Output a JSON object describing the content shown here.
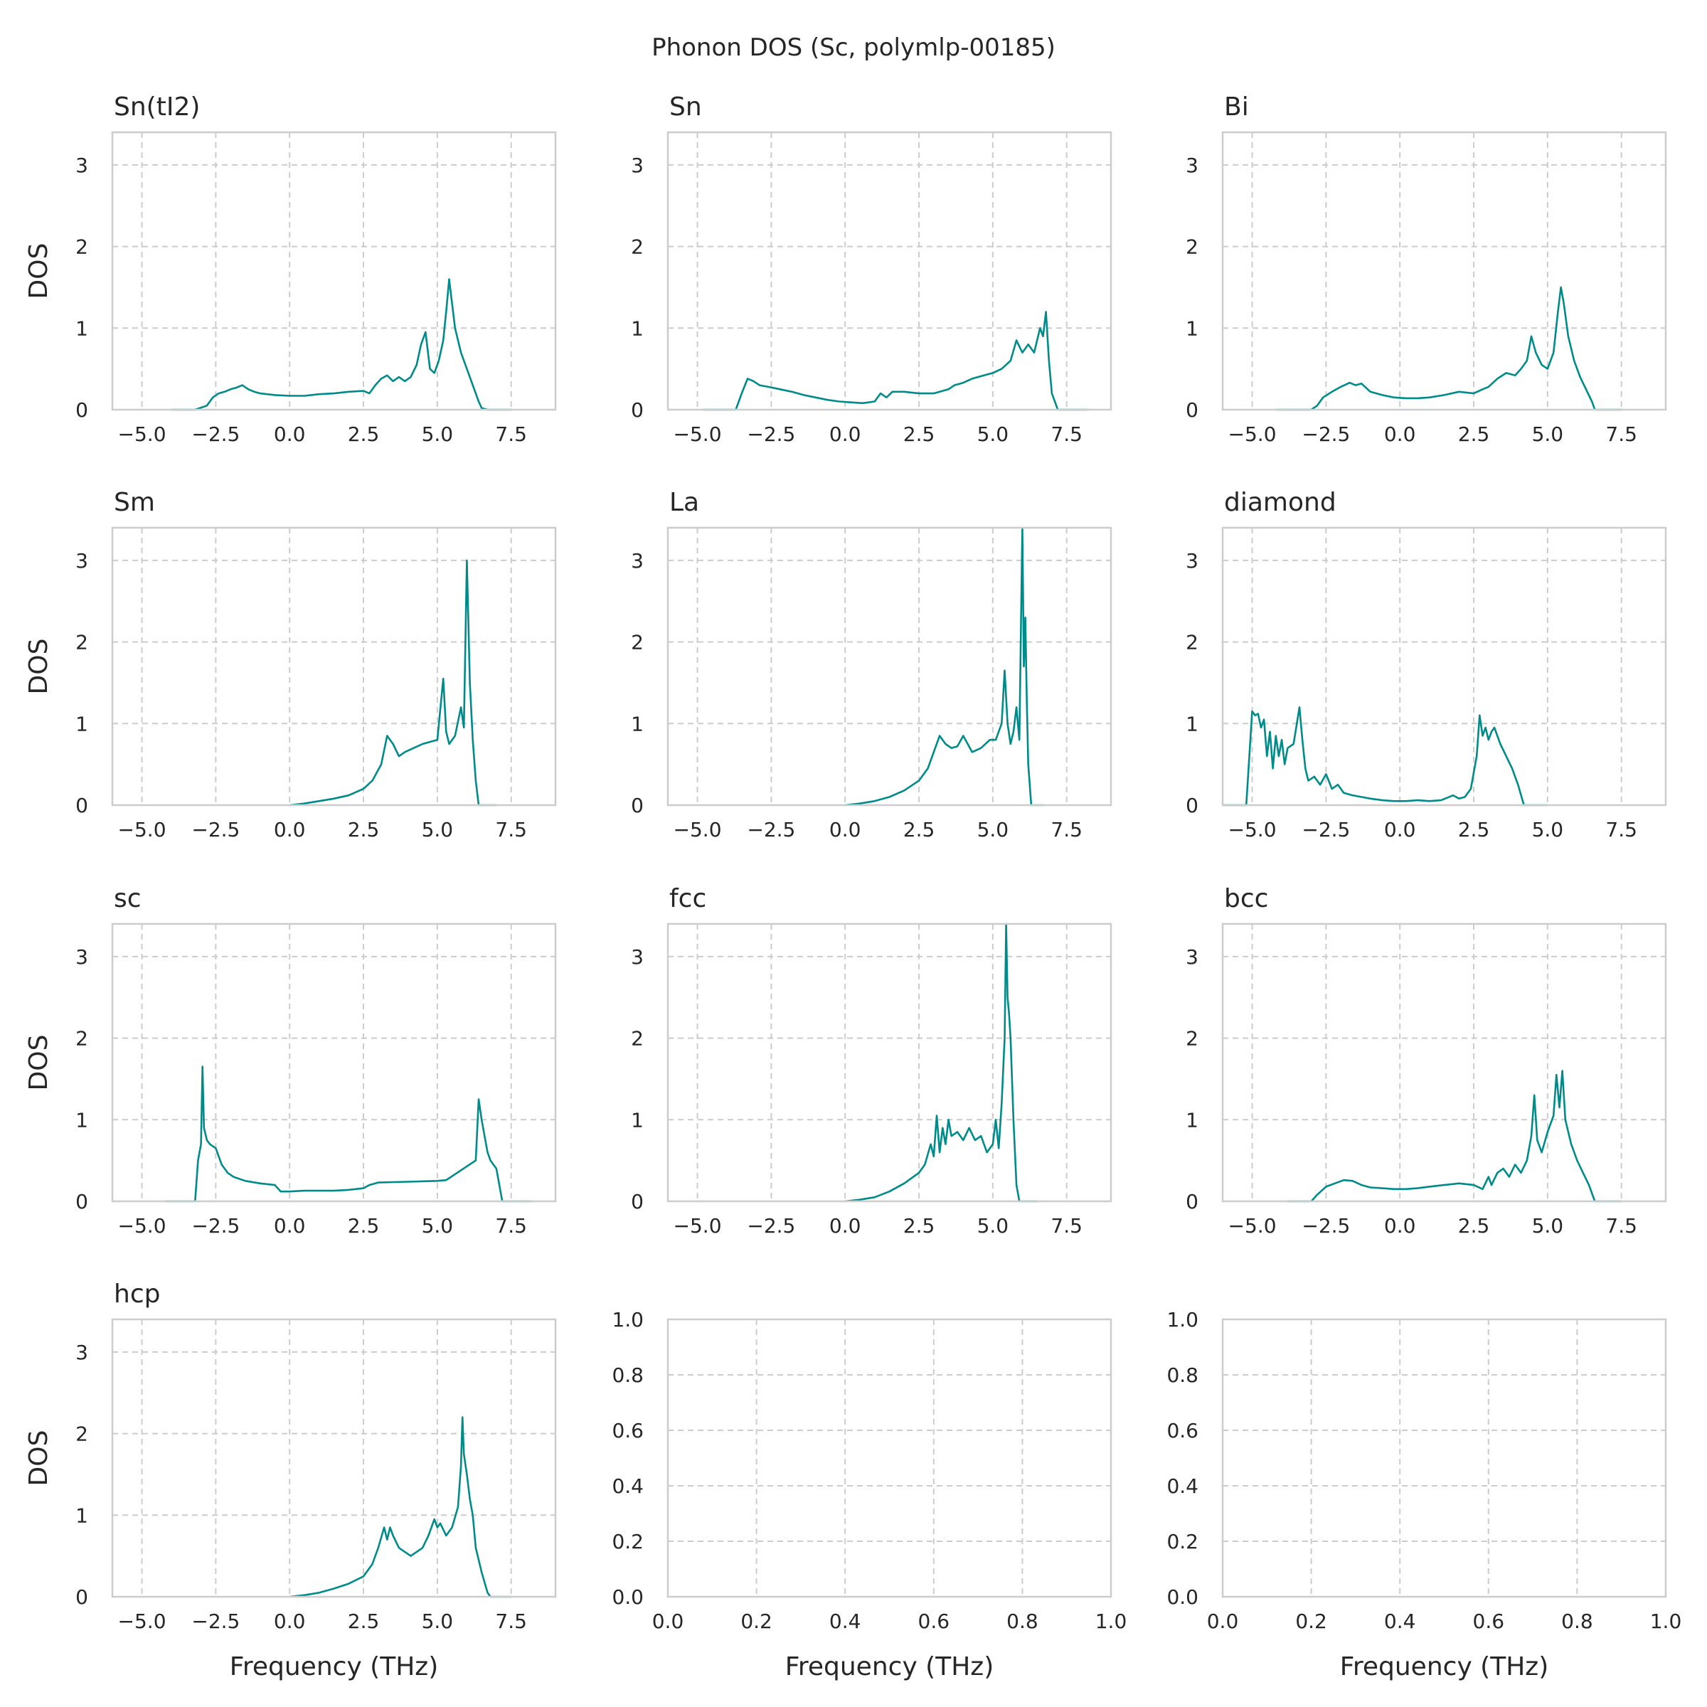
{
  "figure": {
    "title": "Phonon DOS (Sc, polymlp-00185)",
    "xlabel": "Frequency (THz)",
    "ylabel": "DOS",
    "line_color": "#008b8b",
    "grid_color": "#cccccc"
  },
  "chart_data": [
    {
      "type": "line",
      "title": "Sn(tI2)",
      "xlim": [
        -6,
        9
      ],
      "ylim": [
        0,
        3.4
      ],
      "xticks": [
        -5.0,
        -2.5,
        0.0,
        2.5,
        5.0,
        7.5
      ],
      "yticks": [
        0,
        1,
        2,
        3
      ],
      "grid": true,
      "x": [
        -4.0,
        -3.2,
        -2.8,
        -2.6,
        -2.4,
        -2.2,
        -2.0,
        -1.8,
        -1.6,
        -1.4,
        -1.2,
        -1.0,
        -0.5,
        0.0,
        0.5,
        1.0,
        1.5,
        2.0,
        2.5,
        2.7,
        2.9,
        3.1,
        3.3,
        3.5,
        3.7,
        3.9,
        4.1,
        4.3,
        4.45,
        4.6,
        4.75,
        4.9,
        5.05,
        5.2,
        5.3,
        5.4,
        5.5,
        5.6,
        5.8,
        6.0,
        6.2,
        6.4,
        6.5,
        6.7,
        7.5
      ],
      "y": [
        0,
        0,
        0.05,
        0.15,
        0.2,
        0.22,
        0.25,
        0.27,
        0.3,
        0.25,
        0.22,
        0.2,
        0.18,
        0.17,
        0.17,
        0.19,
        0.2,
        0.22,
        0.23,
        0.2,
        0.3,
        0.38,
        0.42,
        0.35,
        0.4,
        0.35,
        0.4,
        0.55,
        0.8,
        0.95,
        0.5,
        0.45,
        0.6,
        0.85,
        1.2,
        1.6,
        1.3,
        1.0,
        0.7,
        0.5,
        0.3,
        0.1,
        0.02,
        0,
        0
      ]
    },
    {
      "type": "line",
      "title": "Sn",
      "xlim": [
        -6,
        9
      ],
      "ylim": [
        0,
        3.4
      ],
      "xticks": [
        -5.0,
        -2.5,
        0.0,
        2.5,
        5.0,
        7.5
      ],
      "yticks": [
        0,
        1,
        2,
        3
      ],
      "grid": true,
      "x": [
        -4.8,
        -3.7,
        -3.5,
        -3.3,
        -3.1,
        -2.9,
        -2.6,
        -2.2,
        -1.8,
        -1.4,
        -1.0,
        -0.6,
        -0.2,
        0.2,
        0.6,
        1.0,
        1.2,
        1.4,
        1.6,
        2.0,
        2.5,
        3.0,
        3.5,
        3.7,
        4.0,
        4.3,
        4.7,
        5.0,
        5.3,
        5.6,
        5.8,
        6.0,
        6.2,
        6.4,
        6.6,
        6.7,
        6.8,
        6.9,
        7.0,
        7.2,
        8.2
      ],
      "y": [
        0,
        0,
        0.2,
        0.38,
        0.35,
        0.3,
        0.28,
        0.25,
        0.22,
        0.18,
        0.15,
        0.12,
        0.1,
        0.09,
        0.08,
        0.1,
        0.2,
        0.15,
        0.22,
        0.22,
        0.2,
        0.2,
        0.25,
        0.3,
        0.33,
        0.38,
        0.42,
        0.45,
        0.5,
        0.6,
        0.85,
        0.7,
        0.8,
        0.7,
        1.0,
        0.9,
        1.2,
        0.6,
        0.2,
        0,
        0
      ]
    },
    {
      "type": "line",
      "title": "Bi",
      "xlim": [
        -6,
        9
      ],
      "ylim": [
        0,
        3.4
      ],
      "xticks": [
        -5.0,
        -2.5,
        0.0,
        2.5,
        5.0,
        7.5
      ],
      "yticks": [
        0,
        1,
        2,
        3
      ],
      "grid": true,
      "x": [
        -4.2,
        -3.0,
        -2.8,
        -2.6,
        -2.3,
        -2.0,
        -1.7,
        -1.5,
        -1.3,
        -1.0,
        -0.6,
        -0.2,
        0.2,
        0.6,
        1.0,
        1.5,
        2.0,
        2.5,
        2.8,
        3.0,
        3.3,
        3.6,
        3.9,
        4.1,
        4.3,
        4.45,
        4.6,
        4.8,
        5.0,
        5.2,
        5.35,
        5.45,
        5.55,
        5.7,
        5.9,
        6.1,
        6.3,
        6.5,
        6.6,
        7.5
      ],
      "y": [
        0,
        0,
        0.05,
        0.15,
        0.22,
        0.28,
        0.33,
        0.3,
        0.32,
        0.22,
        0.18,
        0.15,
        0.14,
        0.14,
        0.15,
        0.18,
        0.22,
        0.2,
        0.25,
        0.28,
        0.38,
        0.45,
        0.42,
        0.5,
        0.6,
        0.9,
        0.7,
        0.55,
        0.5,
        0.7,
        1.2,
        1.5,
        1.3,
        0.9,
        0.6,
        0.4,
        0.25,
        0.1,
        0,
        0
      ]
    },
    {
      "type": "line",
      "title": "Sm",
      "xlim": [
        -6,
        9
      ],
      "ylim": [
        0,
        3.4
      ],
      "xticks": [
        -5.0,
        -2.5,
        0.0,
        2.5,
        5.0,
        7.5
      ],
      "yticks": [
        0,
        1,
        2,
        3
      ],
      "grid": true,
      "x": [
        0.0,
        0.5,
        1.0,
        1.5,
        2.0,
        2.5,
        2.8,
        3.1,
        3.3,
        3.5,
        3.7,
        3.9,
        4.2,
        4.5,
        4.8,
        5.0,
        5.2,
        5.3,
        5.4,
        5.6,
        5.8,
        5.9,
        6.0,
        6.1,
        6.2,
        6.3,
        6.4,
        7.0
      ],
      "y": [
        0,
        0.02,
        0.05,
        0.08,
        0.12,
        0.2,
        0.3,
        0.5,
        0.85,
        0.75,
        0.6,
        0.65,
        0.7,
        0.75,
        0.78,
        0.8,
        1.55,
        0.9,
        0.75,
        0.85,
        1.2,
        0.95,
        3.0,
        1.5,
        0.8,
        0.3,
        0,
        0
      ]
    },
    {
      "type": "line",
      "title": "La",
      "xlim": [
        -6,
        9
      ],
      "ylim": [
        0,
        3.4
      ],
      "xticks": [
        -5.0,
        -2.5,
        0.0,
        2.5,
        5.0,
        7.5
      ],
      "yticks": [
        0,
        1,
        2,
        3
      ],
      "grid": true,
      "x": [
        0.0,
        0.5,
        1.0,
        1.5,
        2.0,
        2.5,
        2.8,
        3.0,
        3.2,
        3.4,
        3.6,
        3.8,
        4.0,
        4.3,
        4.6,
        4.9,
        5.1,
        5.3,
        5.4,
        5.5,
        5.6,
        5.7,
        5.8,
        5.9,
        6.0,
        6.05,
        6.1,
        6.15,
        6.2,
        6.3,
        6.7
      ],
      "y": [
        0,
        0.02,
        0.05,
        0.1,
        0.18,
        0.3,
        0.45,
        0.65,
        0.85,
        0.75,
        0.7,
        0.72,
        0.85,
        0.65,
        0.7,
        0.8,
        0.8,
        1.0,
        1.65,
        1.0,
        0.75,
        0.9,
        1.2,
        0.8,
        3.4,
        1.7,
        2.3,
        1.3,
        0.5,
        0,
        0
      ]
    },
    {
      "type": "line",
      "title": "diamond",
      "xlim": [
        -6,
        9
      ],
      "ylim": [
        0,
        3.4
      ],
      "xticks": [
        -5.0,
        -2.5,
        0.0,
        2.5,
        5.0,
        7.5
      ],
      "yticks": [
        0,
        1,
        2,
        3
      ],
      "grid": true,
      "x": [
        -6.0,
        -5.2,
        -5.0,
        -4.9,
        -4.8,
        -4.7,
        -4.6,
        -4.5,
        -4.4,
        -4.3,
        -4.2,
        -4.1,
        -4.0,
        -3.9,
        -3.8,
        -3.6,
        -3.4,
        -3.3,
        -3.2,
        -3.1,
        -2.9,
        -2.7,
        -2.5,
        -2.3,
        -2.1,
        -1.9,
        -1.6,
        -1.3,
        -1.0,
        -0.6,
        -0.2,
        0.2,
        0.6,
        1.0,
        1.4,
        1.8,
        2.0,
        2.2,
        2.4,
        2.6,
        2.7,
        2.8,
        2.9,
        3.0,
        3.1,
        3.2,
        3.4,
        3.6,
        3.8,
        4.0,
        4.2,
        5.0
      ],
      "y": [
        0,
        0,
        1.15,
        1.1,
        1.12,
        0.95,
        1.05,
        0.6,
        0.9,
        0.45,
        0.85,
        0.6,
        0.8,
        0.5,
        0.7,
        0.75,
        1.2,
        0.8,
        0.45,
        0.3,
        0.35,
        0.25,
        0.38,
        0.2,
        0.25,
        0.15,
        0.12,
        0.1,
        0.08,
        0.06,
        0.05,
        0.05,
        0.06,
        0.05,
        0.06,
        0.12,
        0.08,
        0.1,
        0.2,
        0.6,
        1.1,
        0.85,
        0.95,
        0.8,
        0.9,
        0.95,
        0.75,
        0.6,
        0.45,
        0.25,
        0,
        0
      ]
    },
    {
      "type": "line",
      "title": "sc",
      "xlim": [
        -6,
        9
      ],
      "ylim": [
        0,
        3.4
      ],
      "xticks": [
        -5.0,
        -2.5,
        0.0,
        2.5,
        5.0,
        7.5
      ],
      "yticks": [
        0,
        1,
        2,
        3
      ],
      "grid": true,
      "x": [
        -4.2,
        -3.2,
        -3.1,
        -3.0,
        -2.95,
        -2.9,
        -2.8,
        -2.7,
        -2.5,
        -2.3,
        -2.1,
        -1.9,
        -1.5,
        -1.0,
        -0.5,
        -0.3,
        0.0,
        0.5,
        1.0,
        1.5,
        2.0,
        2.5,
        2.7,
        3.0,
        4.0,
        5.0,
        5.3,
        6.3,
        6.4,
        6.5,
        6.6,
        6.7,
        6.8,
        7.0,
        7.2,
        8.2
      ],
      "y": [
        0,
        0,
        0.5,
        0.7,
        1.65,
        0.9,
        0.75,
        0.7,
        0.65,
        0.45,
        0.35,
        0.3,
        0.25,
        0.22,
        0.2,
        0.12,
        0.12,
        0.13,
        0.13,
        0.13,
        0.14,
        0.16,
        0.2,
        0.23,
        0.24,
        0.25,
        0.26,
        0.5,
        1.25,
        1.0,
        0.8,
        0.6,
        0.5,
        0.4,
        0,
        0
      ]
    },
    {
      "type": "line",
      "title": "fcc",
      "xlim": [
        -6,
        9
      ],
      "ylim": [
        0,
        3.4
      ],
      "xticks": [
        -5.0,
        -2.5,
        0.0,
        2.5,
        5.0,
        7.5
      ],
      "yticks": [
        0,
        1,
        2,
        3
      ],
      "grid": true,
      "x": [
        0.0,
        0.5,
        1.0,
        1.5,
        2.0,
        2.5,
        2.7,
        2.9,
        3.0,
        3.1,
        3.2,
        3.3,
        3.4,
        3.5,
        3.6,
        3.8,
        4.0,
        4.2,
        4.4,
        4.6,
        4.8,
        5.0,
        5.1,
        5.2,
        5.3,
        5.4,
        5.45,
        5.5,
        5.55,
        5.6,
        5.7,
        5.8,
        5.9,
        6.5
      ],
      "y": [
        0,
        0.02,
        0.05,
        0.12,
        0.22,
        0.35,
        0.45,
        0.7,
        0.55,
        1.05,
        0.6,
        0.9,
        0.7,
        1.0,
        0.8,
        0.85,
        0.75,
        0.9,
        0.75,
        0.8,
        0.6,
        0.7,
        1.0,
        0.65,
        1.2,
        2.0,
        3.4,
        2.5,
        2.3,
        2.0,
        1.0,
        0.2,
        0,
        0
      ]
    },
    {
      "type": "line",
      "title": "bcc",
      "xlim": [
        -6,
        9
      ],
      "ylim": [
        0,
        3.4
      ],
      "xticks": [
        -5.0,
        -2.5,
        0.0,
        2.5,
        5.0,
        7.5
      ],
      "yticks": [
        0,
        1,
        2,
        3
      ],
      "grid": true,
      "x": [
        -3.8,
        -3.0,
        -2.8,
        -2.5,
        -2.2,
        -1.9,
        -1.6,
        -1.3,
        -1.0,
        -0.6,
        -0.2,
        0.2,
        0.6,
        1.0,
        1.5,
        2.0,
        2.5,
        2.8,
        3.0,
        3.1,
        3.3,
        3.5,
        3.7,
        3.9,
        4.1,
        4.3,
        4.45,
        4.55,
        4.65,
        4.8,
        5.0,
        5.2,
        5.3,
        5.4,
        5.5,
        5.6,
        5.8,
        6.0,
        6.2,
        6.4,
        6.6,
        7.5
      ],
      "y": [
        0,
        0,
        0.08,
        0.18,
        0.22,
        0.26,
        0.25,
        0.2,
        0.17,
        0.16,
        0.15,
        0.15,
        0.16,
        0.18,
        0.2,
        0.22,
        0.2,
        0.15,
        0.3,
        0.2,
        0.35,
        0.4,
        0.3,
        0.45,
        0.35,
        0.5,
        0.8,
        1.3,
        0.75,
        0.6,
        0.85,
        1.05,
        1.55,
        1.15,
        1.6,
        1.0,
        0.7,
        0.5,
        0.35,
        0.2,
        0,
        0
      ]
    },
    {
      "type": "line",
      "title": "hcp",
      "xlim": [
        -6,
        9
      ],
      "ylim": [
        0,
        3.4
      ],
      "xticks": [
        -5.0,
        -2.5,
        0.0,
        2.5,
        5.0,
        7.5
      ],
      "yticks": [
        0,
        1,
        2,
        3
      ],
      "grid": true,
      "x": [
        0.0,
        0.5,
        1.0,
        1.5,
        2.0,
        2.5,
        2.8,
        3.0,
        3.2,
        3.3,
        3.4,
        3.5,
        3.7,
        3.9,
        4.1,
        4.3,
        4.5,
        4.7,
        4.9,
        5.0,
        5.1,
        5.3,
        5.5,
        5.7,
        5.8,
        5.85,
        5.9,
        6.0,
        6.1,
        6.2,
        6.3,
        6.5,
        6.7,
        6.8,
        7.5
      ],
      "y": [
        0,
        0.02,
        0.05,
        0.1,
        0.16,
        0.25,
        0.4,
        0.6,
        0.85,
        0.7,
        0.85,
        0.75,
        0.6,
        0.55,
        0.5,
        0.55,
        0.6,
        0.75,
        0.95,
        0.85,
        0.9,
        0.75,
        0.85,
        1.1,
        1.6,
        2.2,
        1.75,
        1.5,
        1.2,
        1.0,
        0.6,
        0.3,
        0.05,
        0,
        0
      ]
    },
    {
      "type": "line",
      "title": "",
      "xlim": [
        0,
        1
      ],
      "ylim": [
        0,
        1
      ],
      "xticks": [
        0.0,
        0.2,
        0.4,
        0.6,
        0.8,
        1.0
      ],
      "yticks": [
        0.0,
        0.2,
        0.4,
        0.6,
        0.8,
        1.0
      ],
      "grid": true,
      "x": [],
      "y": []
    },
    {
      "type": "line",
      "title": "",
      "xlim": [
        0,
        1
      ],
      "ylim": [
        0,
        1
      ],
      "xticks": [
        0.0,
        0.2,
        0.4,
        0.6,
        0.8,
        1.0
      ],
      "yticks": [
        0.0,
        0.2,
        0.4,
        0.6,
        0.8,
        1.0
      ],
      "grid": true,
      "x": [],
      "y": []
    }
  ]
}
